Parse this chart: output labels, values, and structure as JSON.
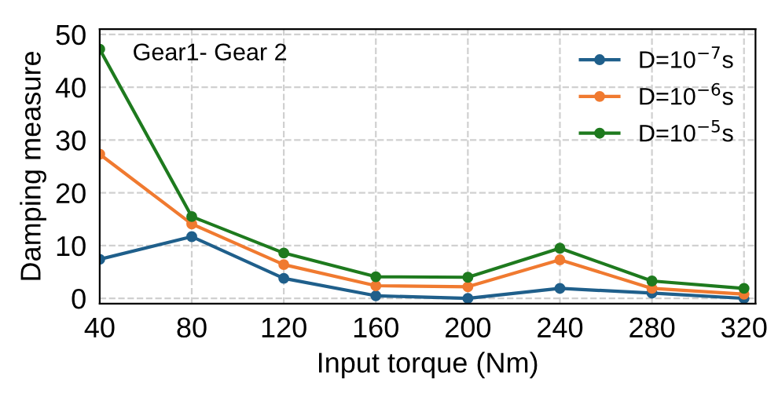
{
  "chart_data": {
    "type": "line",
    "xlabel": "Input torque (Nm)",
    "ylabel": "Damping measure",
    "annotations": [
      "Gear1- Gear 2"
    ],
    "x": [
      40,
      80,
      120,
      160,
      200,
      240,
      280,
      320
    ],
    "xlim": [
      40,
      325
    ],
    "xticks": [
      40,
      80,
      120,
      160,
      200,
      240,
      280,
      320
    ],
    "ylim": [
      -1,
      51
    ],
    "yticks": [
      0,
      10,
      20,
      30,
      40,
      50
    ],
    "grid": true,
    "legend": "top right",
    "marker": "circle",
    "line_style": "solid",
    "series": [
      {
        "name": "D=10$^{−7}$s",
        "color": "#1f5f8b",
        "values": [
          7.4,
          11.7,
          3.8,
          0.5,
          0,
          1.9,
          1,
          0
        ]
      },
      {
        "name": "D=10$^{−6}$s",
        "color": "#f07a30",
        "values": [
          27.3,
          14.1,
          6.4,
          2.4,
          2.2,
          7.3,
          1.9,
          0.8
        ]
      },
      {
        "name": "D=10$^{−5}$s",
        "color": "#1e7a1e",
        "values": [
          47.2,
          15.5,
          8.6,
          4.1,
          4.0,
          9.5,
          3.3,
          1.9
        ]
      }
    ]
  }
}
